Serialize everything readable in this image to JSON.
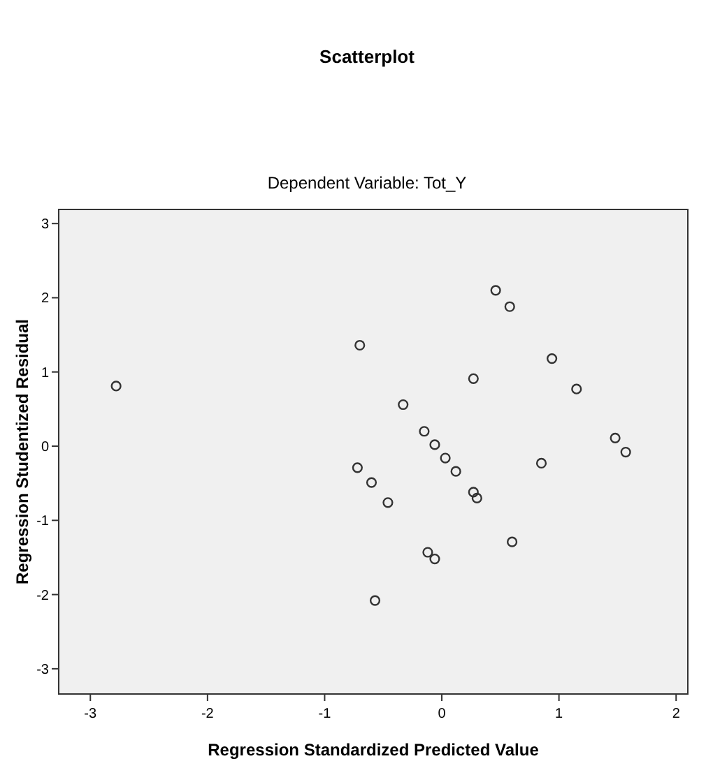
{
  "chart_data": {
    "type": "scatter",
    "title": "Scatterplot",
    "subtitle": "Dependent Variable: Tot_Y",
    "xlabel": "Regression Standardized Predicted Value",
    "ylabel": "Regression Studentized Residual",
    "xlim": [
      -3.27,
      2.1
    ],
    "ylim": [
      -3.34,
      3.19
    ],
    "xticks": [
      -3,
      -2,
      -1,
      0,
      1,
      2
    ],
    "yticks": [
      -3,
      -2,
      -1,
      0,
      1,
      2,
      3
    ],
    "grid": false,
    "marker": "circle",
    "series": [
      {
        "color": "#333333",
        "x": [
          -2.78,
          -0.7,
          -0.72,
          -0.6,
          -0.46,
          -0.57,
          0.46,
          0.58,
          0.94,
          0.27,
          1.15,
          -0.33,
          -0.15,
          -0.06,
          0.03,
          0.12,
          1.48,
          1.57,
          0.85,
          0.27,
          0.3,
          0.6,
          -0.12,
          -0.06
        ],
        "values": [
          0.81,
          1.36,
          -0.29,
          -0.49,
          -0.76,
          -2.08,
          2.1,
          1.88,
          1.18,
          0.91,
          0.77,
          0.56,
          0.2,
          0.02,
          -0.16,
          -0.34,
          0.11,
          -0.08,
          -0.23,
          -0.62,
          -0.7,
          -1.29,
          -1.43,
          -1.52
        ]
      }
    ]
  }
}
